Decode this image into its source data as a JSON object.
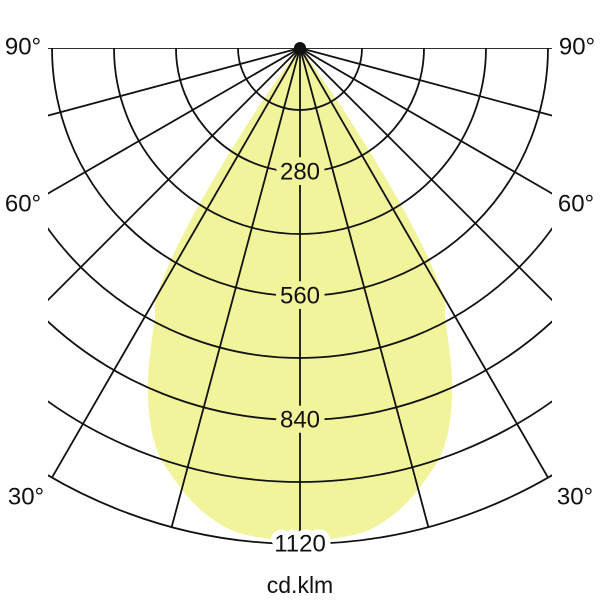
{
  "chart_data": {
    "type": "line",
    "coordinate_system": "polar",
    "description": "Luminous intensity distribution curve of a luminaire (photometric polar diagram, C-plane)",
    "pole": "top-center",
    "angle_range_deg": [
      -90,
      90
    ],
    "angle_grid_step_deg": 15,
    "angle_labels": [
      {
        "side": "left",
        "deg": 90,
        "text": "90°"
      },
      {
        "side": "right",
        "deg": 90,
        "text": "90°"
      },
      {
        "side": "left",
        "deg": 60,
        "text": "60°"
      },
      {
        "side": "right",
        "deg": 60,
        "text": "60°"
      },
      {
        "side": "left",
        "deg": 30,
        "text": "30°"
      },
      {
        "side": "right",
        "deg": 30,
        "text": "30°"
      }
    ],
    "radial_axis": {
      "grid_step": 140,
      "max": 1120,
      "labeled_ticks": [
        {
          "value": 280,
          "text": "280"
        },
        {
          "value": 560,
          "text": "560"
        },
        {
          "value": 840,
          "text": "840"
        },
        {
          "value": 1120,
          "text": "1120"
        }
      ]
    },
    "unit_caption": "cd.klm",
    "series": [
      {
        "name": "luminous-intensity-distribution",
        "symmetric": true,
        "fill_color": "#F2F49B",
        "points_deg_cd": [
          [
            0,
            1113
          ],
          [
            4,
            1110
          ],
          [
            8,
            1100
          ],
          [
            12,
            1068
          ],
          [
            16,
            1018
          ],
          [
            20,
            955
          ],
          [
            24,
            845
          ],
          [
            28,
            700
          ],
          [
            30,
            648
          ],
          [
            32,
            505
          ],
          [
            34,
            278
          ],
          [
            36,
            80
          ],
          [
            37,
            0
          ]
        ]
      }
    ]
  },
  "colors": {
    "grid_line": "#111111",
    "background": "#ffffff",
    "text": "#111111",
    "beam_fill": "#F2F49B",
    "label_halo_outside_beam": "#ffffff"
  }
}
